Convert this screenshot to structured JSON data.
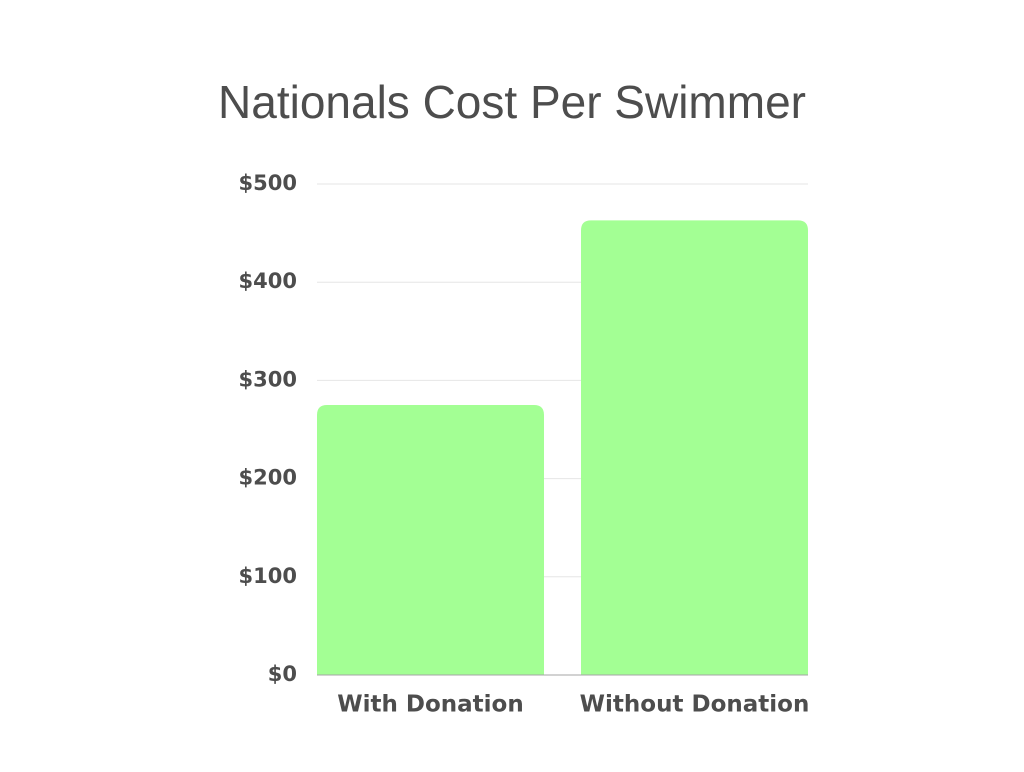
{
  "chart_data": {
    "type": "bar",
    "title": "Nationals Cost Per Swimmer",
    "categories": [
      "With Donation",
      "Without Donation"
    ],
    "values": [
      275,
      463
    ],
    "color": "#a3ff94",
    "ylim": [
      0,
      500
    ],
    "yticks": [
      {
        "value": 0,
        "label": "$0"
      },
      {
        "value": 100,
        "label": "$100"
      },
      {
        "value": 200,
        "label": "$200"
      },
      {
        "value": 300,
        "label": "$300"
      },
      {
        "value": 400,
        "label": "$400"
      },
      {
        "value": 500,
        "label": "$500"
      }
    ],
    "grid": true
  }
}
